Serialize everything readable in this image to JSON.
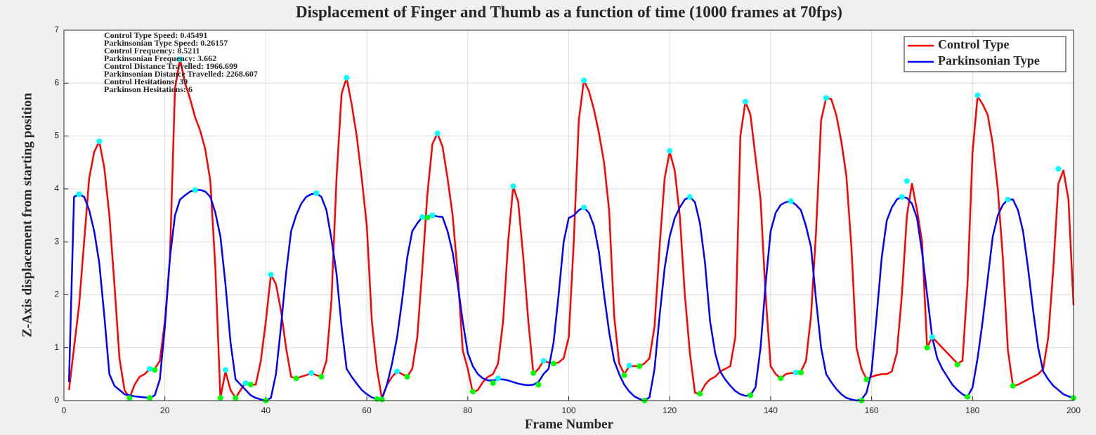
{
  "chart_data": {
    "type": "line",
    "title": "Displacement of Finger and Thumb as a function of time (1000 frames at 70fps)",
    "xlabel": "Frame Number",
    "ylabel": "Z-Axis displacement from starting position",
    "annotations": [
      "Control Type Speed: 0.45491",
      "Parkinsonian Type Speed: 0.26157",
      "Control Frequency: 8.5211",
      "Parkinsonian Frequency: 3.662",
      "Control Distance Travelled: 1966.699",
      "Parkinsonian Distance Travelled: 2268.607",
      "Control Hesitations: 39",
      "Parkinson Hesitations: 6"
    ],
    "xlim": [
      0,
      200
    ],
    "xticks": [
      0,
      20,
      40,
      60,
      80,
      100,
      120,
      140,
      160,
      180,
      200
    ],
    "ylim": [
      0,
      7
    ],
    "yticks": [
      0,
      1,
      2,
      3,
      4,
      5,
      6,
      7
    ],
    "grid": true,
    "legend": "upper right",
    "x": [
      1,
      2,
      3,
      4,
      5,
      6,
      7,
      8,
      9,
      10,
      11,
      12,
      13,
      14,
      15,
      16,
      17,
      18,
      19,
      20,
      21,
      22,
      23,
      24,
      25,
      26,
      27,
      28,
      29,
      30,
      31,
      32,
      33,
      34,
      35,
      36,
      37,
      38,
      39,
      40,
      41,
      42,
      43,
      44,
      45,
      46,
      47,
      48,
      49,
      50,
      51,
      52,
      53,
      54,
      55,
      56,
      57,
      58,
      59,
      60,
      61,
      62,
      63,
      64,
      65,
      66,
      67,
      68,
      69,
      70,
      71,
      72,
      73,
      74,
      75,
      76,
      77,
      78,
      79,
      80,
      81,
      82,
      83,
      84,
      85,
      86,
      87,
      88,
      89,
      90,
      91,
      92,
      93,
      94,
      95,
      96,
      97,
      98,
      99,
      100,
      101,
      102,
      103,
      104,
      105,
      106,
      107,
      108,
      109,
      110,
      111,
      112,
      113,
      114,
      115,
      116,
      117,
      118,
      119,
      120,
      121,
      122,
      123,
      124,
      125,
      126,
      127,
      128,
      129,
      130,
      131,
      132,
      133,
      134,
      135,
      136,
      137,
      138,
      139,
      140,
      141,
      142,
      143,
      144,
      145,
      146,
      147,
      148,
      149,
      150,
      151,
      152,
      153,
      154,
      155,
      156,
      157,
      158,
      159,
      160,
      161,
      162,
      163,
      164,
      165,
      166,
      167,
      168,
      169,
      170,
      171,
      172,
      173,
      174,
      175,
      176,
      177,
      178,
      179,
      180,
      181,
      182,
      183,
      184,
      185,
      186,
      187,
      188,
      189,
      190,
      191,
      192,
      193,
      194,
      195,
      196,
      197,
      198,
      199,
      200
    ],
    "series": [
      {
        "name": "Control Type",
        "color": "#ff0000",
        "values": [
          0.2,
          1.0,
          1.8,
          3.0,
          4.2,
          4.7,
          4.9,
          4.4,
          3.5,
          2.2,
          0.8,
          0.2,
          0.05,
          0.3,
          0.45,
          0.5,
          0.6,
          0.6,
          0.75,
          1.5,
          2.7,
          5.9,
          6.45,
          6.0,
          5.7,
          5.35,
          5.1,
          4.75,
          4.15,
          2.5,
          0.05,
          0.55,
          0.2,
          0.05,
          0.2,
          0.35,
          0.3,
          0.3,
          0.75,
          1.5,
          2.38,
          2.2,
          1.7,
          1.0,
          0.45,
          0.42,
          0.45,
          0.48,
          0.52,
          0.48,
          0.45,
          0.75,
          1.9,
          4.2,
          5.8,
          6.1,
          5.6,
          5.0,
          4.2,
          3.3,
          1.5,
          0.6,
          0.03,
          0.3,
          0.45,
          0.55,
          0.5,
          0.45,
          0.6,
          1.2,
          2.5,
          3.9,
          4.85,
          5.05,
          4.8,
          4.2,
          3.5,
          2.4,
          0.95,
          0.6,
          0.15,
          0.2,
          0.35,
          0.45,
          0.5,
          0.7,
          1.5,
          3.0,
          4.05,
          3.75,
          2.7,
          1.5,
          0.5,
          0.6,
          0.75,
          0.72,
          0.7,
          0.72,
          0.8,
          1.2,
          3.0,
          5.3,
          6.05,
          5.85,
          5.5,
          5.05,
          4.5,
          3.6,
          1.6,
          0.7,
          0.5,
          0.65,
          0.65,
          0.65,
          0.7,
          0.8,
          1.4,
          2.9,
          4.2,
          4.7,
          4.35,
          3.5,
          2.0,
          0.9,
          0.15,
          0.12,
          0.3,
          0.4,
          0.45,
          0.55,
          0.6,
          0.65,
          1.2,
          5.0,
          5.65,
          5.4,
          4.6,
          3.8,
          2.0,
          0.65,
          0.5,
          0.42,
          0.5,
          0.52,
          0.52,
          0.55,
          0.75,
          1.6,
          3.2,
          5.3,
          5.72,
          5.7,
          5.4,
          4.9,
          4.25,
          2.9,
          1.0,
          0.6,
          0.4,
          0.45,
          0.48,
          0.5,
          0.5,
          0.55,
          0.9,
          2.0,
          3.5,
          4.1,
          3.6,
          3.0,
          1.0,
          1.2,
          1.1,
          1.0,
          0.9,
          0.8,
          0.7,
          0.75,
          2.2,
          4.7,
          5.75,
          5.6,
          5.4,
          4.85,
          4.0,
          2.7,
          0.95,
          0.28,
          0.3,
          0.35,
          0.4,
          0.45,
          0.5,
          0.6,
          1.2,
          2.5,
          4.1,
          4.35,
          3.8,
          1.8
        ]
      },
      {
        "name": "Parkinsonian Type",
        "color": "#0000ff",
        "values": [
          0.35,
          3.85,
          3.9,
          3.85,
          3.6,
          3.2,
          2.6,
          1.6,
          0.5,
          0.28,
          0.2,
          0.12,
          0.1,
          0.08,
          0.07,
          0.06,
          0.05,
          0.1,
          0.4,
          1.4,
          2.7,
          3.5,
          3.8,
          3.88,
          3.95,
          3.98,
          3.98,
          3.95,
          3.85,
          3.55,
          3.1,
          2.2,
          1.1,
          0.4,
          0.3,
          0.2,
          0.1,
          0.05,
          0.02,
          0.0,
          0.05,
          0.5,
          1.4,
          2.4,
          3.2,
          3.5,
          3.72,
          3.85,
          3.9,
          3.92,
          3.85,
          3.6,
          3.05,
          2.4,
          1.4,
          0.6,
          0.45,
          0.32,
          0.2,
          0.12,
          0.06,
          0.03,
          0.05,
          0.3,
          0.7,
          1.2,
          1.9,
          2.7,
          3.2,
          3.35,
          3.47,
          3.48,
          3.5,
          3.48,
          3.47,
          3.2,
          2.8,
          2.2,
          1.5,
          0.9,
          0.65,
          0.5,
          0.42,
          0.38,
          0.38,
          0.4,
          0.4,
          0.38,
          0.35,
          0.32,
          0.3,
          0.29,
          0.3,
          0.35,
          0.5,
          0.6,
          1.1,
          2.0,
          3.0,
          3.45,
          3.5,
          3.6,
          3.65,
          3.55,
          3.3,
          2.8,
          2.0,
          1.3,
          0.75,
          0.5,
          0.3,
          0.17,
          0.08,
          0.03,
          0.0,
          0.06,
          0.6,
          1.6,
          2.5,
          3.1,
          3.45,
          3.65,
          3.8,
          3.85,
          3.75,
          3.35,
          2.6,
          1.5,
          0.9,
          0.55,
          0.4,
          0.28,
          0.18,
          0.12,
          0.09,
          0.1,
          0.25,
          1.0,
          2.2,
          3.2,
          3.55,
          3.7,
          3.75,
          3.77,
          3.7,
          3.6,
          3.3,
          2.9,
          1.9,
          1.0,
          0.5,
          0.35,
          0.22,
          0.12,
          0.05,
          0.02,
          0.0,
          0.02,
          0.15,
          0.55,
          1.6,
          2.7,
          3.4,
          3.65,
          3.8,
          3.85,
          3.83,
          3.72,
          3.45,
          2.8,
          2.0,
          1.2,
          0.8,
          0.6,
          0.45,
          0.3,
          0.2,
          0.12,
          0.07,
          0.25,
          0.8,
          1.5,
          2.3,
          3.1,
          3.5,
          3.7,
          3.8,
          3.8,
          3.6,
          3.2,
          2.5,
          1.7,
          1.0,
          0.55,
          0.4,
          0.28,
          0.2,
          0.12,
          0.08,
          0.05
        ]
      }
    ],
    "peak_markers": {
      "color": "#00ffff",
      "x": [
        3,
        7,
        17,
        23,
        26,
        32,
        36,
        41,
        49,
        50,
        56,
        66,
        71,
        73,
        74,
        86,
        89,
        95,
        103,
        103,
        112,
        120,
        124,
        135,
        144,
        145,
        151,
        166,
        167,
        172,
        181,
        187,
        197
      ],
      "values": [
        3.9,
        4.9,
        0.6,
        6.45,
        3.98,
        0.58,
        0.33,
        2.38,
        0.52,
        3.92,
        6.1,
        0.55,
        3.47,
        3.5,
        5.05,
        0.42,
        4.05,
        0.75,
        6.05,
        3.65,
        0.66,
        4.72,
        3.85,
        5.65,
        3.77,
        0.53,
        5.72,
        3.85,
        4.15,
        1.2,
        5.77,
        3.8,
        4.38
      ]
    },
    "trough_markers": {
      "color": "#00ff00",
      "x": [
        13,
        17,
        18,
        31,
        34,
        37,
        40,
        46,
        51,
        62,
        63,
        68,
        72,
        81,
        85,
        93,
        94,
        97,
        111,
        114,
        115,
        126,
        136,
        142,
        146,
        158,
        159,
        171,
        177,
        179,
        188,
        200
      ],
      "values": [
        0.05,
        0.05,
        0.58,
        0.05,
        0.05,
        0.3,
        0.0,
        0.42,
        0.45,
        0.03,
        0.02,
        0.45,
        3.46,
        0.17,
        0.33,
        0.52,
        0.3,
        0.7,
        0.48,
        0.65,
        0.0,
        0.13,
        0.1,
        0.42,
        0.53,
        0.0,
        0.4,
        1.0,
        0.68,
        0.07,
        0.28,
        0.05
      ]
    }
  }
}
